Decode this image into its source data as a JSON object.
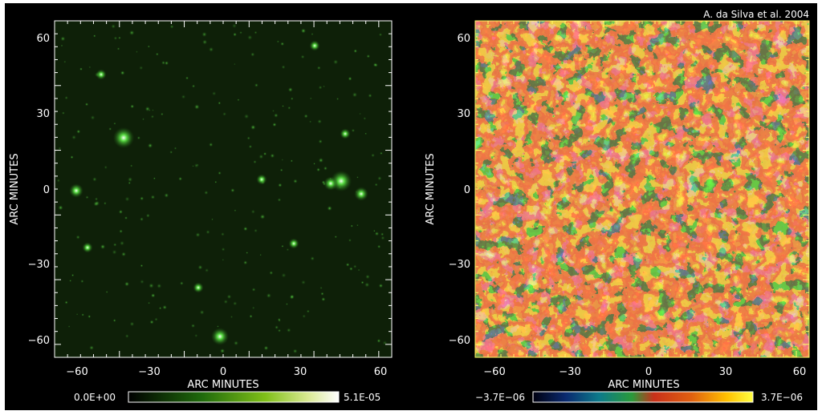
{
  "credit": "A. da Silva et al. 2004",
  "left_map": {
    "xlabel": "ARC MINUTES",
    "ylabel": "ARC MINUTES",
    "x_ticks": [
      "−60",
      "−30",
      "0",
      "30",
      "60"
    ],
    "y_ticks": [
      "60",
      "30",
      "0",
      "−30",
      "−60"
    ],
    "colorbar_min": "0.0E+00",
    "colorbar_max": "5.1E-05"
  },
  "right_map": {
    "xlabel": "ARC MINUTES",
    "ylabel": "ARC MINUTES",
    "x_ticks": [
      "−60",
      "−30",
      "0",
      "30",
      "60"
    ],
    "y_ticks": [
      "60",
      "30",
      "0",
      "−30",
      "−60"
    ],
    "colorbar_min": "−3.7E−06",
    "colorbar_max": "3.7E−06"
  },
  "colors": {
    "frame": "#000000",
    "axis_left": "#ffffff",
    "axis_right": "#ffff66",
    "green_high": "#ffffff",
    "green_mid": "#33c020",
    "map_red": "#d42a10",
    "map_green": "#239038",
    "map_yellow": "#ffe000",
    "map_blue": "#0a2060"
  }
}
